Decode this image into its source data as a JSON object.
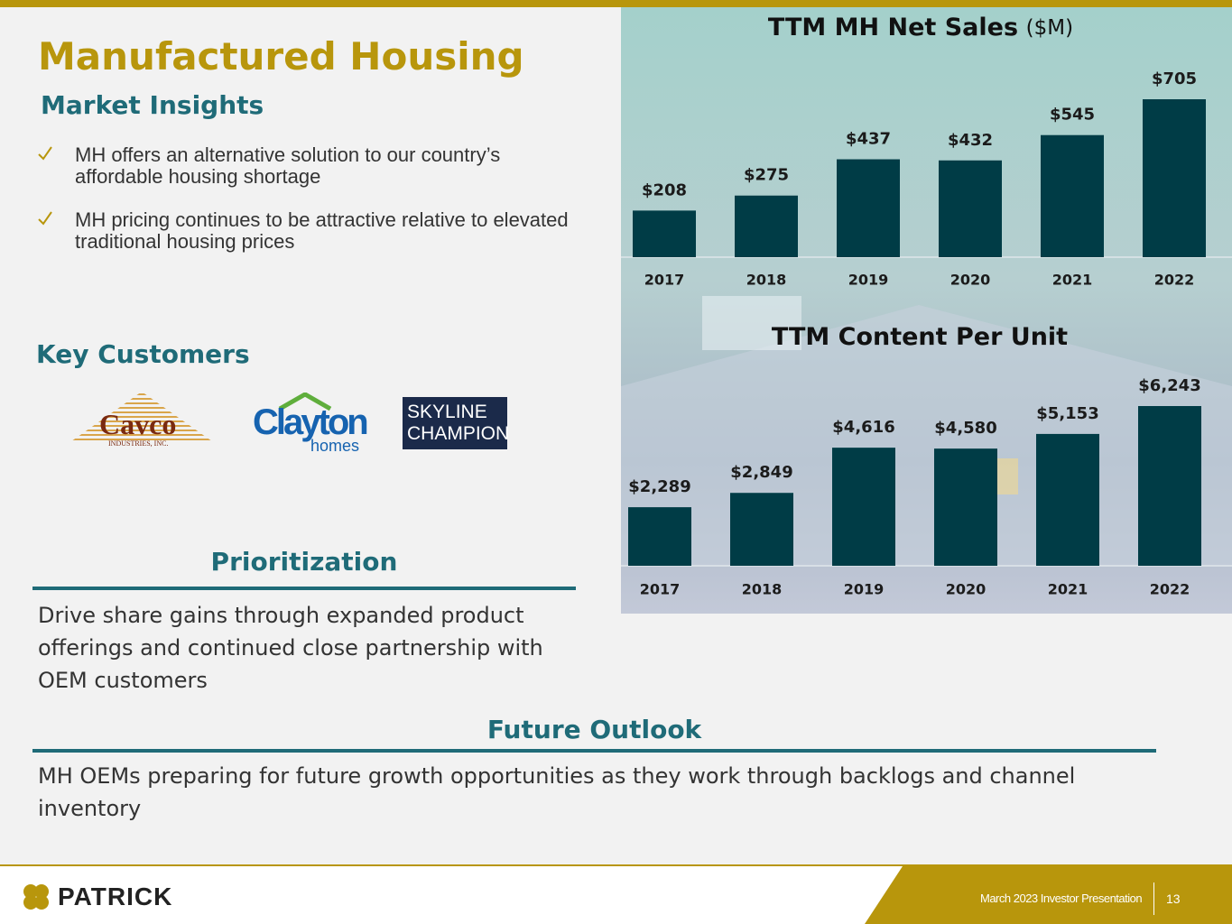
{
  "header": {
    "title": "Manufactured Housing",
    "subtitle": "Market Insights"
  },
  "bullets": [
    "MH offers an alternative solution to our country’s affordable housing shortage",
    "MH pricing continues to be attractive relative to elevated traditional housing prices"
  ],
  "key_customers": {
    "heading": "Key Customers",
    "logos": [
      {
        "name": "Cavco",
        "tagline": "INDUSTRIES, INC."
      },
      {
        "name": "Clayton",
        "tagline": "homes"
      },
      {
        "name": "SKYLINE",
        "tagline": "CHAMPION"
      }
    ]
  },
  "prioritization": {
    "heading": "Prioritization",
    "text": "Drive share gains through expanded product offerings and continued close partnership with OEM customers"
  },
  "future_outlook": {
    "heading": "Future Outlook",
    "text": "MH OEMs preparing for future growth opportunities as they work through backlogs and channel inventory"
  },
  "footer": {
    "brand": "PATRICK",
    "event": "March 2023 Investor Presentation",
    "page": "13"
  },
  "chart_data": [
    {
      "type": "bar",
      "title": "TTM MH Net Sales",
      "unit": "($M)",
      "categories": [
        "2017",
        "2018",
        "2019",
        "2020",
        "2021",
        "2022"
      ],
      "values": [
        208,
        275,
        437,
        432,
        545,
        705
      ],
      "value_labels": [
        "$208",
        "$275",
        "$437",
        "$432",
        "$545",
        "$705"
      ],
      "color": "#003c46"
    },
    {
      "type": "bar",
      "title": "TTM Content Per Unit",
      "categories": [
        "2017",
        "2018",
        "2019",
        "2020",
        "2021",
        "2022"
      ],
      "values": [
        2289,
        2849,
        4616,
        4580,
        5153,
        6243
      ],
      "value_labels": [
        "$2,289",
        "$2,849",
        "$4,616",
        "$4,580",
        "$5,153",
        "$6,243"
      ],
      "color": "#003c46"
    }
  ]
}
